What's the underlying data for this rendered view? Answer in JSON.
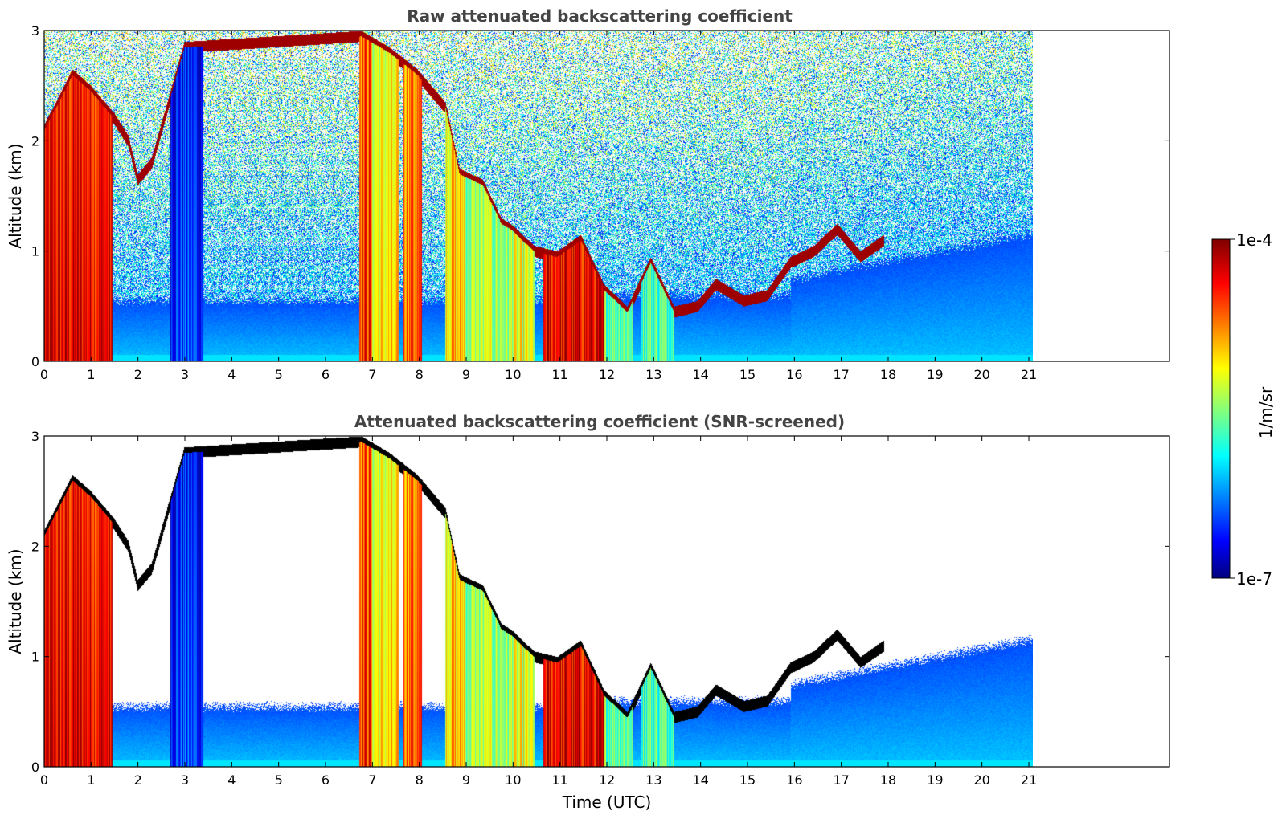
{
  "chart_data": [
    {
      "type": "heatmap",
      "title": "Raw attenuated backscattering coefficient",
      "xlabel": "",
      "ylabel": "Altitude (km)",
      "xlim": [
        0,
        24
      ],
      "ylim": [
        0,
        3
      ],
      "data_extent_x": [
        0,
        21.2
      ],
      "x_ticks": [
        "0",
        "1",
        "2",
        "3",
        "4",
        "5",
        "6",
        "7",
        "8",
        "9",
        "10",
        "11",
        "12",
        "13",
        "14",
        "15",
        "16",
        "17",
        "18",
        "19",
        "20",
        "21"
      ],
      "y_ticks": [
        "0",
        "1",
        "2",
        "3"
      ],
      "screened": false
    },
    {
      "type": "heatmap",
      "title": "Attenuated backscattering coefficient (SNR-screened)",
      "xlabel": "Time (UTC)",
      "ylabel": "Altitude (km)",
      "xlim": [
        0,
        24
      ],
      "ylim": [
        0,
        3
      ],
      "data_extent_x": [
        0,
        21.2
      ],
      "x_ticks": [
        "0",
        "1",
        "2",
        "3",
        "4",
        "5",
        "6",
        "7",
        "8",
        "9",
        "10",
        "11",
        "12",
        "13",
        "14",
        "15",
        "16",
        "17",
        "18",
        "19",
        "20",
        "21"
      ],
      "y_ticks": [
        "0",
        "1",
        "2",
        "3"
      ],
      "screened": true
    }
  ],
  "colorbar": {
    "label": "1/m/sr",
    "max_label": "1e-4",
    "min_label": "1e-7",
    "scale": "log",
    "colormap": "jet"
  },
  "features": {
    "cloud_layer_profile": [
      [
        0,
        2.1
      ],
      [
        0.6,
        2.6
      ],
      [
        1.0,
        2.45
      ],
      [
        1.5,
        2.2
      ],
      [
        1.8,
        2.0
      ],
      [
        2.0,
        1.65
      ],
      [
        2.3,
        1.8
      ],
      [
        3.0,
        2.85
      ],
      [
        6.8,
        2.95
      ],
      [
        7.4,
        2.8
      ],
      [
        8.0,
        2.6
      ],
      [
        8.6,
        2.3
      ],
      [
        8.9,
        1.7
      ],
      [
        9.4,
        1.6
      ],
      [
        9.8,
        1.25
      ],
      [
        10.0,
        1.2
      ],
      [
        10.5,
        1.0
      ],
      [
        11.0,
        0.95
      ],
      [
        11.5,
        1.1
      ],
      [
        12.0,
        0.65
      ],
      [
        12.5,
        0.45
      ],
      [
        13.0,
        0.9
      ],
      [
        13.5,
        0.45
      ],
      [
        14.0,
        0.5
      ],
      [
        14.4,
        0.7
      ],
      [
        15.0,
        0.55
      ],
      [
        15.5,
        0.6
      ],
      [
        16.0,
        0.9
      ],
      [
        16.5,
        1.0
      ],
      [
        17.0,
        1.2
      ],
      [
        17.5,
        0.95
      ],
      [
        18.0,
        1.1
      ]
    ],
    "dense_columns": [
      [
        0.0,
        1.45,
        0.85
      ],
      [
        2.7,
        3.4,
        0.15
      ],
      [
        6.75,
        7.0,
        0.8
      ],
      [
        7.0,
        7.6,
        0.6
      ],
      [
        7.7,
        8.1,
        0.75
      ],
      [
        8.6,
        9.0,
        0.65
      ],
      [
        9.0,
        10.0,
        0.5
      ],
      [
        10.0,
        10.5,
        0.55
      ],
      [
        10.7,
        12.0,
        0.85
      ],
      [
        12.0,
        12.6,
        0.45
      ],
      [
        12.8,
        13.5,
        0.42
      ]
    ],
    "clear_sky_fraction_above": 0.9
  }
}
